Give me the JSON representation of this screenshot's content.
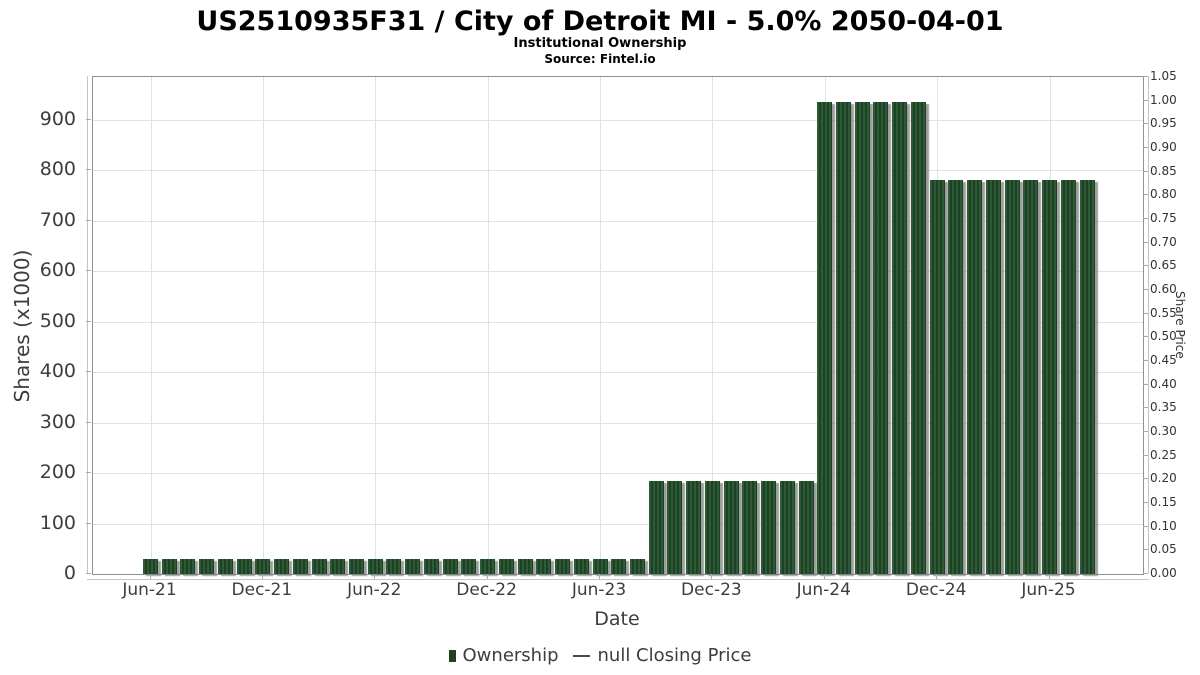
{
  "header": {
    "title": "US2510935F31 / City of Detroit MI - 5.0% 2050-04-01",
    "subtitle": "Institutional Ownership",
    "source": "Source: Fintel.io"
  },
  "legend": {
    "ownership_label": "Ownership",
    "price_label": "null Closing Price"
  },
  "chart_data": {
    "type": "bar",
    "title": "US2510935F31 / City of Detroit MI - 5.0% 2050-04-01",
    "subtitle": "Institutional Ownership",
    "source": "Source: Fintel.io",
    "xlabel": "Date",
    "ylabel_left": "Shares (x1000)",
    "ylabel_right": "Share Price",
    "ylim_left": [
      0,
      985
    ],
    "ylim_right": [
      0,
      1.05
    ],
    "grid": true,
    "legend_position": "bottom",
    "bar_color": "#1d4124",
    "x": [
      "Jun-21",
      "Jul-21",
      "Aug-21",
      "Sep-21",
      "Oct-21",
      "Nov-21",
      "Dec-21",
      "Jan-22",
      "Feb-22",
      "Mar-22",
      "Apr-22",
      "May-22",
      "Jun-22",
      "Jul-22",
      "Aug-22",
      "Sep-22",
      "Oct-22",
      "Nov-22",
      "Dec-22",
      "Jan-23",
      "Feb-23",
      "Mar-23",
      "Apr-23",
      "May-23",
      "Jun-23",
      "Jul-23",
      "Aug-23",
      "Sep-23",
      "Oct-23",
      "Nov-23",
      "Dec-23",
      "Jan-24",
      "Feb-24",
      "Mar-24",
      "Apr-24",
      "May-24",
      "Jun-24",
      "Jul-24",
      "Aug-24",
      "Sep-24",
      "Oct-24",
      "Nov-24",
      "Dec-24",
      "Jan-25",
      "Feb-25",
      "Mar-25",
      "Apr-25",
      "May-25",
      "Jun-25",
      "Jul-25",
      "Aug-25"
    ],
    "series": [
      {
        "name": "Ownership",
        "type": "bar",
        "values": [
          30,
          30,
          30,
          30,
          30,
          30,
          30,
          30,
          30,
          30,
          30,
          30,
          30,
          30,
          30,
          30,
          30,
          30,
          30,
          30,
          30,
          30,
          30,
          30,
          30,
          30,
          30,
          185,
          185,
          185,
          185,
          185,
          185,
          185,
          185,
          185,
          935,
          935,
          935,
          935,
          935,
          935,
          780,
          780,
          780,
          780,
          780,
          780,
          780,
          780,
          780
        ]
      },
      {
        "name": "null Closing Price",
        "type": "line",
        "values": []
      }
    ],
    "x_tick_indices": [
      0,
      6,
      12,
      18,
      24,
      30,
      36,
      42,
      48
    ],
    "x_tick_labels": [
      "Jun-21",
      "Dec-21",
      "Jun-22",
      "Dec-22",
      "Jun-23",
      "Dec-23",
      "Jun-24",
      "Dec-24",
      "Jun-25"
    ],
    "y_ticks_left": [
      0,
      100,
      200,
      300,
      400,
      500,
      600,
      700,
      800,
      900
    ],
    "y_ticks_right": [
      "0.00",
      "0.05",
      "0.10",
      "0.15",
      "0.20",
      "0.25",
      "0.30",
      "0.35",
      "0.40",
      "0.45",
      "0.50",
      "0.55",
      "0.60",
      "0.65",
      "0.70",
      "0.75",
      "0.80",
      "0.85",
      "0.90",
      "0.95",
      "1.00",
      "1.05"
    ]
  }
}
